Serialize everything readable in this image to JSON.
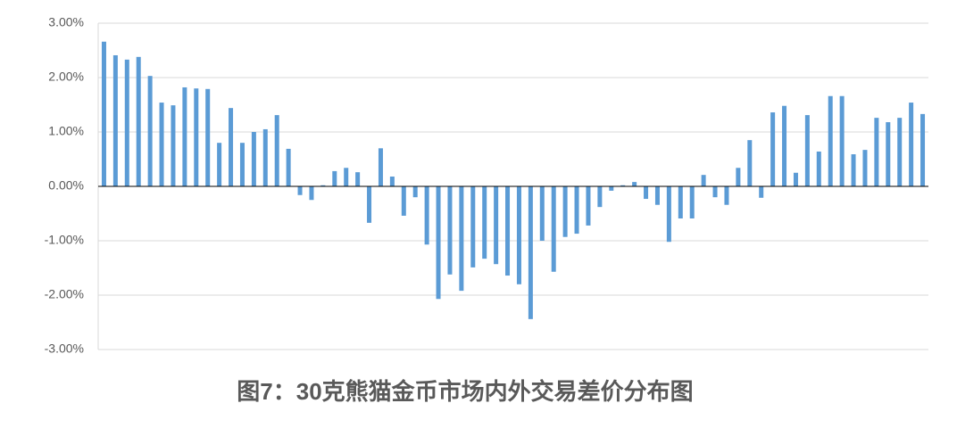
{
  "chart_data": {
    "type": "bar",
    "title": "图7：30克熊猫金币市场内外交易差价分布图",
    "categories": [
      null,
      null,
      null,
      null,
      null,
      null,
      null,
      null,
      null,
      null,
      null,
      null,
      null,
      null,
      null,
      null,
      null,
      null,
      null,
      null,
      null,
      null,
      null,
      null,
      null,
      null,
      null,
      null,
      null,
      null,
      null,
      null,
      null,
      null,
      null,
      null,
      null,
      null,
      null,
      null,
      null,
      null,
      null,
      null,
      null,
      null,
      null,
      null,
      null,
      null,
      null,
      null,
      null,
      null,
      null,
      null,
      null,
      null,
      null,
      null,
      null,
      null,
      null,
      null,
      null,
      null,
      null,
      null,
      null,
      null,
      null,
      null
    ],
    "values": [
      2.66,
      2.41,
      2.33,
      2.38,
      2.03,
      1.54,
      1.49,
      1.82,
      1.8,
      1.79,
      0.8,
      1.44,
      0.8,
      1.0,
      1.05,
      1.31,
      0.69,
      -0.16,
      -0.25,
      0.02,
      0.28,
      0.34,
      0.26,
      -0.67,
      0.7,
      0.18,
      -0.54,
      -0.2,
      -1.07,
      -2.07,
      -1.62,
      -1.92,
      -1.49,
      -1.33,
      -1.43,
      -1.64,
      -1.8,
      -2.44,
      -1.0,
      -1.57,
      -0.93,
      -0.87,
      -0.72,
      -0.38,
      -0.08,
      0.02,
      0.08,
      -0.23,
      -0.34,
      -1.02,
      -0.59,
      -0.59,
      0.21,
      -0.2,
      -0.34,
      0.34,
      0.85,
      -0.21,
      1.36,
      1.48,
      0.25,
      1.31,
      0.64,
      1.66,
      1.66,
      0.59,
      0.67,
      1.26,
      1.18,
      1.26,
      1.54,
      1.33
    ],
    "color": "#5b9bd5",
    "ylim": [
      -3,
      3
    ],
    "yticks": [
      {
        "value": -3,
        "label": "-3.00%"
      },
      {
        "value": -2,
        "label": "-2.00%"
      },
      {
        "value": -1,
        "label": "-1.00%"
      },
      {
        "value": 0,
        "label": "0.00%"
      },
      {
        "value": 1,
        "label": "1.00%"
      },
      {
        "value": 2,
        "label": "2.00%"
      },
      {
        "value": 3,
        "label": "3.00%"
      }
    ],
    "grid": true
  }
}
